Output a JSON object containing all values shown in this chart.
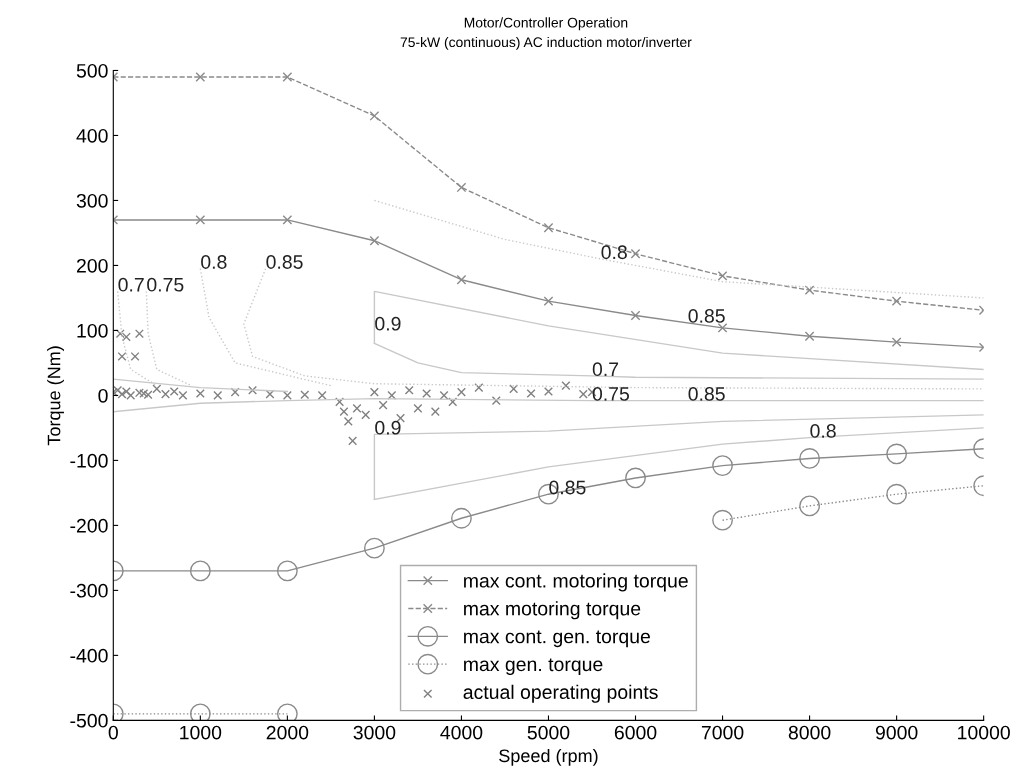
{
  "chart_data": {
    "type": "line",
    "title": "Motor/Controller Operation",
    "subtitle": "75-kW (continuous) AC induction motor/inverter",
    "xlabel": "Speed (rpm)",
    "ylabel": "Torque (Nm)",
    "xlim": [
      0,
      10000
    ],
    "ylim": [
      -500,
      500
    ],
    "xticks": [
      0,
      1000,
      2000,
      3000,
      4000,
      5000,
      6000,
      7000,
      8000,
      9000,
      10000
    ],
    "yticks": [
      -500,
      -400,
      -300,
      -200,
      -100,
      0,
      100,
      200,
      300,
      400,
      500
    ],
    "grid": false,
    "legend": "bottom",
    "series": [
      {
        "name": "max cont. motoring torque",
        "color": "#8a8a8a",
        "marker": "cross",
        "line_style": "solid",
        "x": [
          0,
          1000,
          2000,
          3000,
          4000,
          5000,
          6000,
          7000,
          8000,
          9000,
          10000
        ],
        "values": [
          270,
          270,
          270,
          238,
          178,
          145,
          123,
          104,
          91,
          82,
          74
        ]
      },
      {
        "name": "max motoring torque",
        "color": "#8a8a8a",
        "marker": "cross",
        "line_style": "dashed",
        "x": [
          0,
          1000,
          2000,
          3000,
          4000,
          5000,
          6000,
          7000,
          8000,
          9000,
          10000
        ],
        "values": [
          490,
          490,
          490,
          430,
          320,
          258,
          218,
          184,
          162,
          145,
          131
        ]
      },
      {
        "name": "max cont. gen. torque",
        "color": "#8a8a8a",
        "marker": "circle",
        "line_style": "solid",
        "x": [
          0,
          1000,
          2000,
          3000,
          4000,
          5000,
          6000,
          7000,
          8000,
          9000,
          10000
        ],
        "values": [
          -270,
          -270,
          -270,
          -235,
          -189,
          -152,
          -127,
          -108,
          -97,
          -90,
          -82
        ]
      },
      {
        "name": "max gen. torque",
        "color": "#8a8a8a",
        "marker": "circle",
        "line_style": "dotted",
        "x": [
          0,
          1000,
          2000,
          3000,
          4000,
          5000,
          6000,
          7000,
          8000,
          9000,
          10000
        ],
        "values": [
          -490,
          -490,
          -490,
          null,
          null,
          null,
          null,
          -192,
          -170,
          -152,
          -139
        ]
      },
      {
        "color": "#c8c8c8",
        "marker": "none",
        "line_style": "dotted",
        "x": [
          50,
          100,
          200,
          500
        ],
        "values": [
          160,
          90,
          40,
          15
        ]
      },
      {
        "color": "#c8c8c8",
        "marker": "none",
        "line_style": "dotted",
        "x": [
          380,
          400,
          500,
          900
        ],
        "values": [
          160,
          95,
          40,
          15
        ]
      },
      {
        "color": "#c8c8c8",
        "marker": "none",
        "line_style": "dotted",
        "x": [
          1000,
          1100,
          1400,
          2500
        ],
        "values": [
          195,
          120,
          50,
          15
        ]
      },
      {
        "color": "#c8c8c8",
        "marker": "none",
        "line_style": "dotted",
        "x": [
          1750,
          1500,
          1600,
          2200,
          3000,
          6000,
          10000
        ],
        "values": [
          195,
          110,
          60,
          30,
          18,
          12,
          10
        ]
      },
      {
        "color": "#c8c8c8",
        "marker": "none",
        "line_style": "dotted",
        "x": [
          3000,
          4500,
          5600,
          7000,
          10000
        ],
        "values": [
          300,
          240,
          210,
          175,
          150
        ]
      },
      {
        "color": "#c8c8c8",
        "marker": "none",
        "line_style": "solid",
        "x": [
          3000,
          3000,
          3000,
          5000,
          7000,
          10000
        ],
        "values": [
          80,
          100,
          160,
          107,
          65,
          40
        ]
      },
      {
        "color": "#c8c8c8",
        "marker": "none",
        "line_style": "solid",
        "x": [
          3000,
          3500,
          4000,
          5500,
          6000,
          10000
        ],
        "values": [
          80,
          50,
          35,
          30,
          28,
          25
        ]
      },
      {
        "color": "#c8c8c8",
        "marker": "none",
        "line_style": "solid",
        "x": [
          3000,
          3000,
          5000,
          7000,
          10000
        ],
        "values": [
          -160,
          -60,
          -55,
          -40,
          -30
        ]
      },
      {
        "color": "#c8c8c8",
        "marker": "none",
        "line_style": "solid",
        "x": [
          3000,
          5000,
          7000,
          8000,
          10000
        ],
        "values": [
          -160,
          -110,
          -75,
          -65,
          -50
        ]
      },
      {
        "color": "#c8c8c8",
        "marker": "none",
        "line_style": "solid",
        "x": [
          0,
          1000,
          2000,
          3000,
          5500,
          6600,
          10000
        ],
        "values": [
          -25,
          -12,
          -8,
          -5,
          -8,
          -8,
          -8
        ]
      },
      {
        "color": "#c8c8c8",
        "marker": "none",
        "line_style": "solid",
        "x": [
          0,
          1000,
          2000
        ],
        "values": [
          25,
          12,
          6
        ]
      },
      {
        "name": "actual operating points",
        "type": "scatter",
        "color": "#808080",
        "marker": "cross",
        "x": [
          0,
          50,
          100,
          150,
          200,
          300,
          350,
          400,
          500,
          600,
          700,
          800,
          1000,
          1200,
          1400,
          1600,
          1800,
          2000,
          2200,
          2400,
          2600,
          2650,
          2700,
          2750,
          2800,
          2900,
          3000,
          3100,
          3200,
          3300,
          3400,
          3500,
          3600,
          3700,
          3800,
          3900,
          4000,
          4200,
          4400,
          4600,
          4800,
          5000,
          5200,
          5400,
          5500,
          80,
          150,
          300,
          100,
          250
        ],
        "values": [
          5,
          8,
          2,
          6,
          0,
          4,
          3,
          1,
          10,
          2,
          6,
          0,
          3,
          0,
          5,
          8,
          2,
          0,
          1,
          0,
          -10,
          -25,
          -40,
          -70,
          -20,
          -30,
          5,
          -15,
          0,
          -35,
          8,
          -20,
          3,
          -25,
          0,
          -10,
          5,
          12,
          -8,
          10,
          3,
          6,
          15,
          2,
          5,
          95,
          90,
          95,
          60,
          60
        ]
      }
    ],
    "annotations": [
      {
        "text": "0.7",
        "x": 50,
        "y": 160
      },
      {
        "text": "0.75",
        "x": 380,
        "y": 160
      },
      {
        "text": "0.8",
        "x": 1000,
        "y": 195
      },
      {
        "text": "0.85",
        "x": 1750,
        "y": 195
      },
      {
        "text": "0.9",
        "x": 3000,
        "y": 100
      },
      {
        "text": "0.8",
        "x": 5600,
        "y": 210
      },
      {
        "text": "0.85",
        "x": 6600,
        "y": 112
      },
      {
        "text": "0.7",
        "x": 5500,
        "y": 30
      },
      {
        "text": "0.75",
        "x": 5500,
        "y": -8
      },
      {
        "text": "0.85",
        "x": 6600,
        "y": -8
      },
      {
        "text": "0.9",
        "x": 3000,
        "y": -60
      },
      {
        "text": "0.8",
        "x": 8000,
        "y": -65
      },
      {
        "text": "0.85",
        "x": 5000,
        "y": -152
      }
    ]
  }
}
